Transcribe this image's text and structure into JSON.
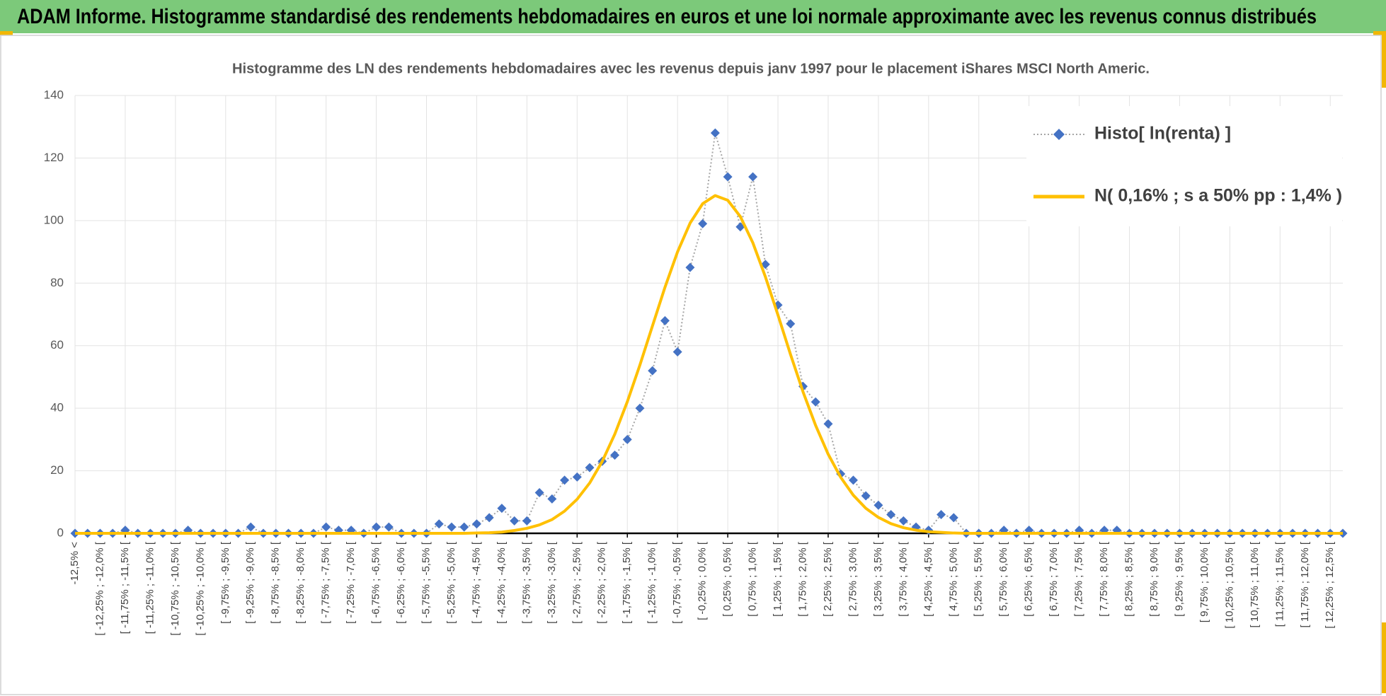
{
  "chart_data": {
    "type": "line",
    "title": "ADAM Informe. Histogramme standardisé des rendements hebdomadaires en euros et une loi normale approximante avec les revenus connus distribués",
    "subtitle": "Histogramme des LN des rendements hebdomadaires avec les revenus depuis janv 1997 pour le placement iShares MSCI North Americ.",
    "categories": [
      "-12,5% <",
      null,
      "[ -12,25% ; -12,0% [",
      null,
      "[ -11,75% ; -11,5% [",
      null,
      "[ -11,25% ; -11,0% [",
      null,
      "[ -10,75% ; -10,5% [",
      null,
      "[ -10,25% ; -10,0% [",
      null,
      "[ -9,75% ; -9,5% [",
      null,
      "[ -9,25% ; -9,0% [",
      null,
      "[ -8,75% ; -8,5% [",
      null,
      "[ -8,25% ; -8,0% [",
      null,
      "[ -7,75% ; -7,5% [",
      null,
      "[ -7,25% ; -7,0% [",
      null,
      "[ -6,75% ; -6,5% [",
      null,
      "[ -6,25% ; -6,0% [",
      null,
      "[ -5,75% ; -5,5% [",
      null,
      "[ -5,25% ; -5,0% [",
      null,
      "[ -4,75% ; -4,5% [",
      null,
      "[ -4,25% ; -4,0% [",
      null,
      "[ -3,75% ; -3,5% [",
      null,
      "[ -3,25% ; -3,0% [",
      null,
      "[ -2,75% ; -2,5% [",
      null,
      "[ -2,25% ; -2,0% [",
      null,
      "[ -1,75% ; -1,5% [",
      null,
      "[ -1,25% ; -1,0% [",
      null,
      "[ -0,75% ; -0,5% [",
      null,
      "[ -0,25% ; 0,0% [",
      null,
      "[ 0,25% ; 0,5% [",
      null,
      "[ 0,75% ; 1,0% [",
      null,
      "[ 1,25% ; 1,5% [",
      null,
      "[ 1,75% ; 2,0% [",
      null,
      "[ 2,25% ; 2,5% [",
      null,
      "[ 2,75% ; 3,0% [",
      null,
      "[ 3,25% ; 3,5% [",
      null,
      "[ 3,75% ; 4,0% [",
      null,
      "[ 4,25% ; 4,5% [",
      null,
      "[ 4,75% ; 5,0% [",
      null,
      "[ 5,25% ; 5,5% [",
      null,
      "[ 5,75% ; 6,0% [",
      null,
      "[ 6,25% ; 6,5% [",
      null,
      "[ 6,75% ; 7,0% [",
      null,
      "[ 7,25% ; 7,5% [",
      null,
      "[ 7,75% ; 8,0% [",
      null,
      "[ 8,25% ; 8,5% [",
      null,
      "[ 8,75% ; 9,0% [",
      null,
      "[ 9,25% ; 9,5% [",
      null,
      "[ 9,75% ; 10,0% [",
      null,
      "[ 10,25% ; 10,5% [",
      null,
      "[ 10,75% ; 11,0% [",
      null,
      "[ 11,25% ; 11,5% [",
      null,
      "[ 11,75% ; 12,0% [",
      null,
      "[ 12,25% ; 12,5% [",
      null
    ],
    "series": [
      {
        "name": "Histo[ ln(renta) ]",
        "color": "#4472c4",
        "line_color": "#a6a6a6",
        "marker": "diamond",
        "values": [
          0,
          0,
          0,
          0,
          1,
          0,
          0,
          0,
          0,
          1,
          0,
          0,
          0,
          0,
          2,
          0,
          0,
          0,
          0,
          0,
          2,
          1,
          1,
          0,
          2,
          2,
          0,
          0,
          0,
          3,
          2,
          2,
          3,
          5,
          8,
          4,
          4,
          13,
          11,
          17,
          18,
          21,
          23,
          25,
          30,
          40,
          52,
          68,
          58,
          85,
          99,
          128,
          114,
          98,
          114,
          86,
          73,
          67,
          47,
          42,
          35,
          19,
          17,
          12,
          9,
          6,
          4,
          2,
          1,
          6,
          5,
          0,
          0,
          0,
          1,
          0,
          1,
          0,
          0,
          0,
          1,
          0,
          1,
          1,
          0,
          0,
          0,
          0,
          0,
          0,
          0,
          0,
          0,
          0,
          0,
          0,
          0,
          0,
          0,
          0,
          0,
          0
        ]
      },
      {
        "name": "N( 0,16% ; s a 50% pp : 1,4% )",
        "color": "#ffc000",
        "values": [
          0,
          0,
          0,
          0,
          0,
          0,
          0,
          0,
          0,
          0,
          0,
          0,
          0,
          0,
          0,
          0,
          0,
          0,
          0,
          0,
          0,
          0,
          0,
          0,
          0,
          0,
          0,
          0,
          0,
          0,
          0,
          0,
          0.1,
          0.2,
          0.4,
          0.9,
          1.6,
          2.7,
          4.4,
          7.1,
          10.9,
          16.1,
          23.0,
          31.7,
          42.1,
          53.8,
          66.3,
          78.7,
          90.0,
          99.2,
          105.4,
          108,
          106.5,
          101.3,
          92.9,
          82.0,
          69.8,
          57.2,
          45.2,
          34.5,
          25.3,
          17.9,
          12.2,
          8.0,
          5.1,
          3.1,
          1.8,
          1.0,
          0.5,
          0.3,
          0.1,
          0,
          0,
          0,
          0,
          0,
          0,
          0,
          0,
          0,
          0,
          0,
          0,
          0,
          0,
          0,
          0,
          0,
          0,
          0,
          0,
          0,
          0,
          0,
          0,
          0,
          0,
          0,
          0,
          0,
          0,
          0
        ]
      }
    ],
    "ylim": [
      0,
      140
    ],
    "yticks": [
      0,
      20,
      40,
      60,
      80,
      100,
      120,
      140
    ],
    "grid": true,
    "legend": "upper right"
  }
}
